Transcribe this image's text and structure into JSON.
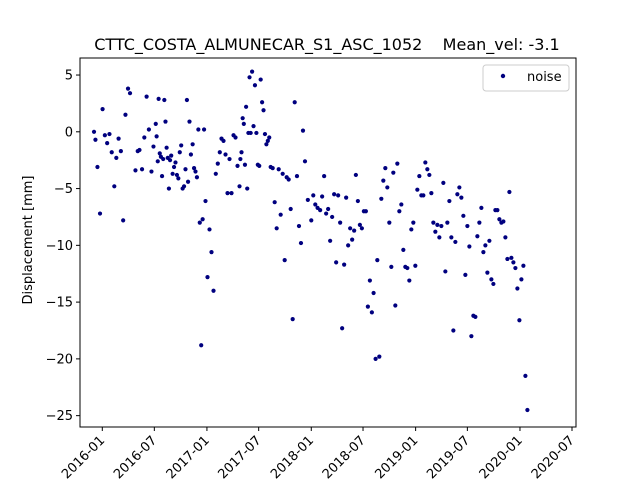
{
  "chart_data": {
    "type": "scatter",
    "title": "CTTC_COSTA_ALMUNECAR_S1_ASC_1052    Mean_vel: -3.1",
    "xlabel": "",
    "ylabel": "Displacement [mm]",
    "xlim": [
      "2015-10-15",
      "2020-07-15"
    ],
    "ylim": [
      -26,
      6.5
    ],
    "x_ticks": [
      "2016-01",
      "2016-07",
      "2017-01",
      "2017-07",
      "2018-01",
      "2018-07",
      "2019-01",
      "2019-07",
      "2020-01",
      "2020-07"
    ],
    "y_ticks": [
      5,
      0,
      -5,
      -10,
      -15,
      -20,
      -25
    ],
    "grid": false,
    "legend": {
      "position": "top-right",
      "entries": [
        "noise"
      ]
    },
    "colors": {
      "points": "#00007f"
    },
    "series": [
      {
        "name": "noise",
        "points": [
          [
            "2015-12-03",
            0.0
          ],
          [
            "2015-12-08",
            -0.7
          ],
          [
            "2015-12-15",
            -3.1
          ],
          [
            "2015-12-24",
            -7.2
          ],
          [
            "2016-01-02",
            2.0
          ],
          [
            "2016-01-10",
            -0.3
          ],
          [
            "2016-01-18",
            -1.0
          ],
          [
            "2016-01-26",
            -0.2
          ],
          [
            "2016-02-03",
            -1.8
          ],
          [
            "2016-02-12",
            -4.8
          ],
          [
            "2016-02-19",
            -2.3
          ],
          [
            "2016-02-27",
            -0.6
          ],
          [
            "2016-03-06",
            -1.7
          ],
          [
            "2016-03-14",
            -7.8
          ],
          [
            "2016-03-22",
            1.5
          ],
          [
            "2016-03-31",
            3.8
          ],
          [
            "2016-04-07",
            3.4
          ],
          [
            "2016-04-26",
            -3.4
          ],
          [
            "2016-05-04",
            -1.7
          ],
          [
            "2016-05-10",
            -1.6
          ],
          [
            "2016-05-19",
            -3.3
          ],
          [
            "2016-05-27",
            -0.5
          ],
          [
            "2016-06-04",
            3.1
          ],
          [
            "2016-06-12",
            0.2
          ],
          [
            "2016-06-21",
            -3.5
          ],
          [
            "2016-06-28",
            -1.3
          ],
          [
            "2016-07-06",
            0.7
          ],
          [
            "2016-07-09",
            -0.4
          ],
          [
            "2016-07-13",
            -2.6
          ],
          [
            "2016-07-16",
            2.9
          ],
          [
            "2016-07-20",
            -1.9
          ],
          [
            "2016-07-24",
            -2.2
          ],
          [
            "2016-07-28",
            -3.9
          ],
          [
            "2016-08-01",
            -2.4
          ],
          [
            "2016-08-05",
            2.8
          ],
          [
            "2016-08-09",
            0.9
          ],
          [
            "2016-08-13",
            -1.4
          ],
          [
            "2016-08-17",
            -2.3
          ],
          [
            "2016-08-21",
            -5.0
          ],
          [
            "2016-08-25",
            -2.5
          ],
          [
            "2016-08-29",
            -2.1
          ],
          [
            "2016-09-03",
            -3.7
          ],
          [
            "2016-09-08",
            -3.1
          ],
          [
            "2016-09-13",
            -2.7
          ],
          [
            "2016-09-18",
            -3.8
          ],
          [
            "2016-09-23",
            -4.1
          ],
          [
            "2016-09-28",
            -1.8
          ],
          [
            "2016-10-03",
            -1.2
          ],
          [
            "2016-10-08",
            -5.0
          ],
          [
            "2016-10-13",
            -4.8
          ],
          [
            "2016-10-18",
            -3.3
          ],
          [
            "2016-10-23",
            2.8
          ],
          [
            "2016-10-27",
            -4.4
          ],
          [
            "2016-11-01",
            0.9
          ],
          [
            "2016-11-06",
            -2.0
          ],
          [
            "2016-11-12",
            -1.1
          ],
          [
            "2016-11-17",
            -3.2
          ],
          [
            "2016-11-22",
            -3.5
          ],
          [
            "2016-11-27",
            -4.0
          ],
          [
            "2016-12-02",
            0.2
          ],
          [
            "2016-12-07",
            -8.0
          ],
          [
            "2016-12-12",
            -18.8
          ],
          [
            "2016-12-17",
            -7.7
          ],
          [
            "2016-12-22",
            0.2
          ],
          [
            "2016-12-27",
            -6.1
          ],
          [
            "2017-01-03",
            -12.8
          ],
          [
            "2017-01-10",
            -8.6
          ],
          [
            "2017-01-17",
            -10.6
          ],
          [
            "2017-01-24",
            -14.0
          ],
          [
            "2017-02-01",
            -3.7
          ],
          [
            "2017-02-08",
            -2.8
          ],
          [
            "2017-02-15",
            -1.8
          ],
          [
            "2017-02-21",
            -0.6
          ],
          [
            "2017-02-28",
            -0.8
          ],
          [
            "2017-03-07",
            -2.0
          ],
          [
            "2017-03-14",
            -5.4
          ],
          [
            "2017-03-21",
            -2.4
          ],
          [
            "2017-03-28",
            -5.4
          ],
          [
            "2017-04-04",
            -0.3
          ],
          [
            "2017-04-11",
            -0.5
          ],
          [
            "2017-04-18",
            -3.0
          ],
          [
            "2017-04-25",
            -4.8
          ],
          [
            "2017-04-28",
            -2.4
          ],
          [
            "2017-05-02",
            -1.8
          ],
          [
            "2017-05-06",
            1.2
          ],
          [
            "2017-05-10",
            0.7
          ],
          [
            "2017-05-14",
            -2.9
          ],
          [
            "2017-05-18",
            2.2
          ],
          [
            "2017-05-22",
            -5.0
          ],
          [
            "2017-05-26",
            -0.1
          ],
          [
            "2017-05-30",
            4.8
          ],
          [
            "2017-06-03",
            -0.1
          ],
          [
            "2017-06-08",
            5.3
          ],
          [
            "2017-06-13",
            0.5
          ],
          [
            "2017-06-18",
            4.1
          ],
          [
            "2017-06-23",
            -0.1
          ],
          [
            "2017-06-28",
            -2.9
          ],
          [
            "2017-07-03",
            -3.0
          ],
          [
            "2017-07-08",
            4.6
          ],
          [
            "2017-07-13",
            2.6
          ],
          [
            "2017-07-18",
            1.9
          ],
          [
            "2017-07-23",
            -0.2
          ],
          [
            "2017-07-28",
            -1.1
          ],
          [
            "2017-08-02",
            -0.8
          ],
          [
            "2017-08-07",
            -0.5
          ],
          [
            "2017-08-12",
            -3.1
          ],
          [
            "2017-08-19",
            -3.2
          ],
          [
            "2017-08-26",
            -6.2
          ],
          [
            "2017-09-02",
            -8.5
          ],
          [
            "2017-09-09",
            -3.3
          ],
          [
            "2017-09-16",
            -7.3
          ],
          [
            "2017-09-23",
            -3.7
          ],
          [
            "2017-09-30",
            -11.3
          ],
          [
            "2017-10-07",
            -4.0
          ],
          [
            "2017-10-14",
            -4.2
          ],
          [
            "2017-10-21",
            -6.8
          ],
          [
            "2017-10-28",
            -16.5
          ],
          [
            "2017-11-04",
            2.6
          ],
          [
            "2017-11-12",
            -3.9
          ],
          [
            "2017-11-19",
            -8.3
          ],
          [
            "2017-11-26",
            -9.8
          ],
          [
            "2017-12-03",
            0.1
          ],
          [
            "2017-12-10",
            -2.6
          ],
          [
            "2017-12-20",
            -6.0
          ],
          [
            "2018-01-01",
            -7.8
          ],
          [
            "2018-01-08",
            -5.6
          ],
          [
            "2018-01-15",
            -6.4
          ],
          [
            "2018-01-23",
            -6.7
          ],
          [
            "2018-02-01",
            -6.9
          ],
          [
            "2018-02-08",
            -5.7
          ],
          [
            "2018-02-15",
            -3.9
          ],
          [
            "2018-02-22",
            -7.2
          ],
          [
            "2018-03-01",
            -6.8
          ],
          [
            "2018-03-08",
            -9.6
          ],
          [
            "2018-03-15",
            -7.5
          ],
          [
            "2018-03-22",
            -5.5
          ],
          [
            "2018-03-29",
            -11.5
          ],
          [
            "2018-04-05",
            -5.6
          ],
          [
            "2018-04-12",
            -8.0
          ],
          [
            "2018-04-19",
            -17.3
          ],
          [
            "2018-04-26",
            -11.7
          ],
          [
            "2018-05-03",
            -5.8
          ],
          [
            "2018-05-10",
            -10.0
          ],
          [
            "2018-05-17",
            -8.5
          ],
          [
            "2018-05-24",
            -9.5
          ],
          [
            "2018-05-31",
            -8.7
          ],
          [
            "2018-06-06",
            -3.8
          ],
          [
            "2018-06-13",
            -6.1
          ],
          [
            "2018-06-20",
            -8.2
          ],
          [
            "2018-06-27",
            -8.5
          ],
          [
            "2018-07-04",
            -7.0
          ],
          [
            "2018-07-11",
            -7.0
          ],
          [
            "2018-07-18",
            -15.4
          ],
          [
            "2018-07-25",
            -13.1
          ],
          [
            "2018-08-01",
            -15.9
          ],
          [
            "2018-08-07",
            -14.2
          ],
          [
            "2018-08-14",
            -20.0
          ],
          [
            "2018-08-20",
            -11.3
          ],
          [
            "2018-08-27",
            -19.8
          ],
          [
            "2018-09-03",
            -5.9
          ],
          [
            "2018-09-10",
            -4.3
          ],
          [
            "2018-09-17",
            -3.2
          ],
          [
            "2018-09-24",
            -4.9
          ],
          [
            "2018-10-01",
            -8.0
          ],
          [
            "2018-10-08",
            -11.9
          ],
          [
            "2018-10-15",
            -3.6
          ],
          [
            "2018-10-22",
            -15.3
          ],
          [
            "2018-10-29",
            -2.8
          ],
          [
            "2018-11-05",
            -7.0
          ],
          [
            "2018-11-12",
            -6.4
          ],
          [
            "2018-11-19",
            -10.4
          ],
          [
            "2018-11-26",
            -11.9
          ],
          [
            "2018-12-03",
            -12.0
          ],
          [
            "2018-12-10",
            -13.1
          ],
          [
            "2018-12-17",
            -8.6
          ],
          [
            "2018-12-24",
            -8.0
          ],
          [
            "2018-12-31",
            -11.8
          ],
          [
            "2019-01-07",
            -5.1
          ],
          [
            "2019-01-14",
            -3.9
          ],
          [
            "2019-01-21",
            -5.6
          ],
          [
            "2019-01-28",
            -5.6
          ],
          [
            "2019-02-04",
            -2.7
          ],
          [
            "2019-02-11",
            -3.3
          ],
          [
            "2019-02-18",
            -3.8
          ],
          [
            "2019-02-25",
            -5.4
          ],
          [
            "2019-03-04",
            -8.0
          ],
          [
            "2019-03-11",
            -8.8
          ],
          [
            "2019-03-18",
            -8.2
          ],
          [
            "2019-03-25",
            -9.3
          ],
          [
            "2019-04-01",
            -8.3
          ],
          [
            "2019-04-08",
            -4.5
          ],
          [
            "2019-04-15",
            -12.3
          ],
          [
            "2019-04-22",
            -8.0
          ],
          [
            "2019-04-29",
            -6.1
          ],
          [
            "2019-05-06",
            -9.3
          ],
          [
            "2019-05-13",
            -17.5
          ],
          [
            "2019-05-20",
            -9.7
          ],
          [
            "2019-05-27",
            -5.5
          ],
          [
            "2019-06-03",
            -4.9
          ],
          [
            "2019-06-10",
            -5.8
          ],
          [
            "2019-06-17",
            -7.4
          ],
          [
            "2019-06-24",
            -12.6
          ],
          [
            "2019-07-01",
            -8.3
          ],
          [
            "2019-07-08",
            -10.1
          ],
          [
            "2019-07-15",
            -18.0
          ],
          [
            "2019-07-22",
            -16.2
          ],
          [
            "2019-07-29",
            -16.3
          ],
          [
            "2019-08-05",
            -9.2
          ],
          [
            "2019-08-12",
            -8.0
          ],
          [
            "2019-08-19",
            -6.7
          ],
          [
            "2019-08-26",
            -10.6
          ],
          [
            "2019-09-02",
            -10.0
          ],
          [
            "2019-09-09",
            -12.4
          ],
          [
            "2019-09-16",
            -9.6
          ],
          [
            "2019-09-23",
            -13.0
          ],
          [
            "2019-09-30",
            -13.4
          ],
          [
            "2019-10-07",
            -6.9
          ],
          [
            "2019-10-14",
            -6.9
          ],
          [
            "2019-10-21",
            -7.7
          ],
          [
            "2019-10-28",
            -8.0
          ],
          [
            "2019-11-04",
            -7.9
          ],
          [
            "2019-11-11",
            -9.3
          ],
          [
            "2019-11-18",
            -11.2
          ],
          [
            "2019-11-25",
            -5.3
          ],
          [
            "2019-12-02",
            -11.1
          ],
          [
            "2019-12-09",
            -11.5
          ],
          [
            "2019-12-16",
            -12.0
          ],
          [
            "2019-12-23",
            -13.8
          ],
          [
            "2019-12-30",
            -16.6
          ],
          [
            "2020-01-06",
            -13.0
          ],
          [
            "2020-01-13",
            -11.8
          ],
          [
            "2020-01-20",
            -21.5
          ],
          [
            "2020-01-27",
            -24.5
          ]
        ]
      }
    ]
  }
}
